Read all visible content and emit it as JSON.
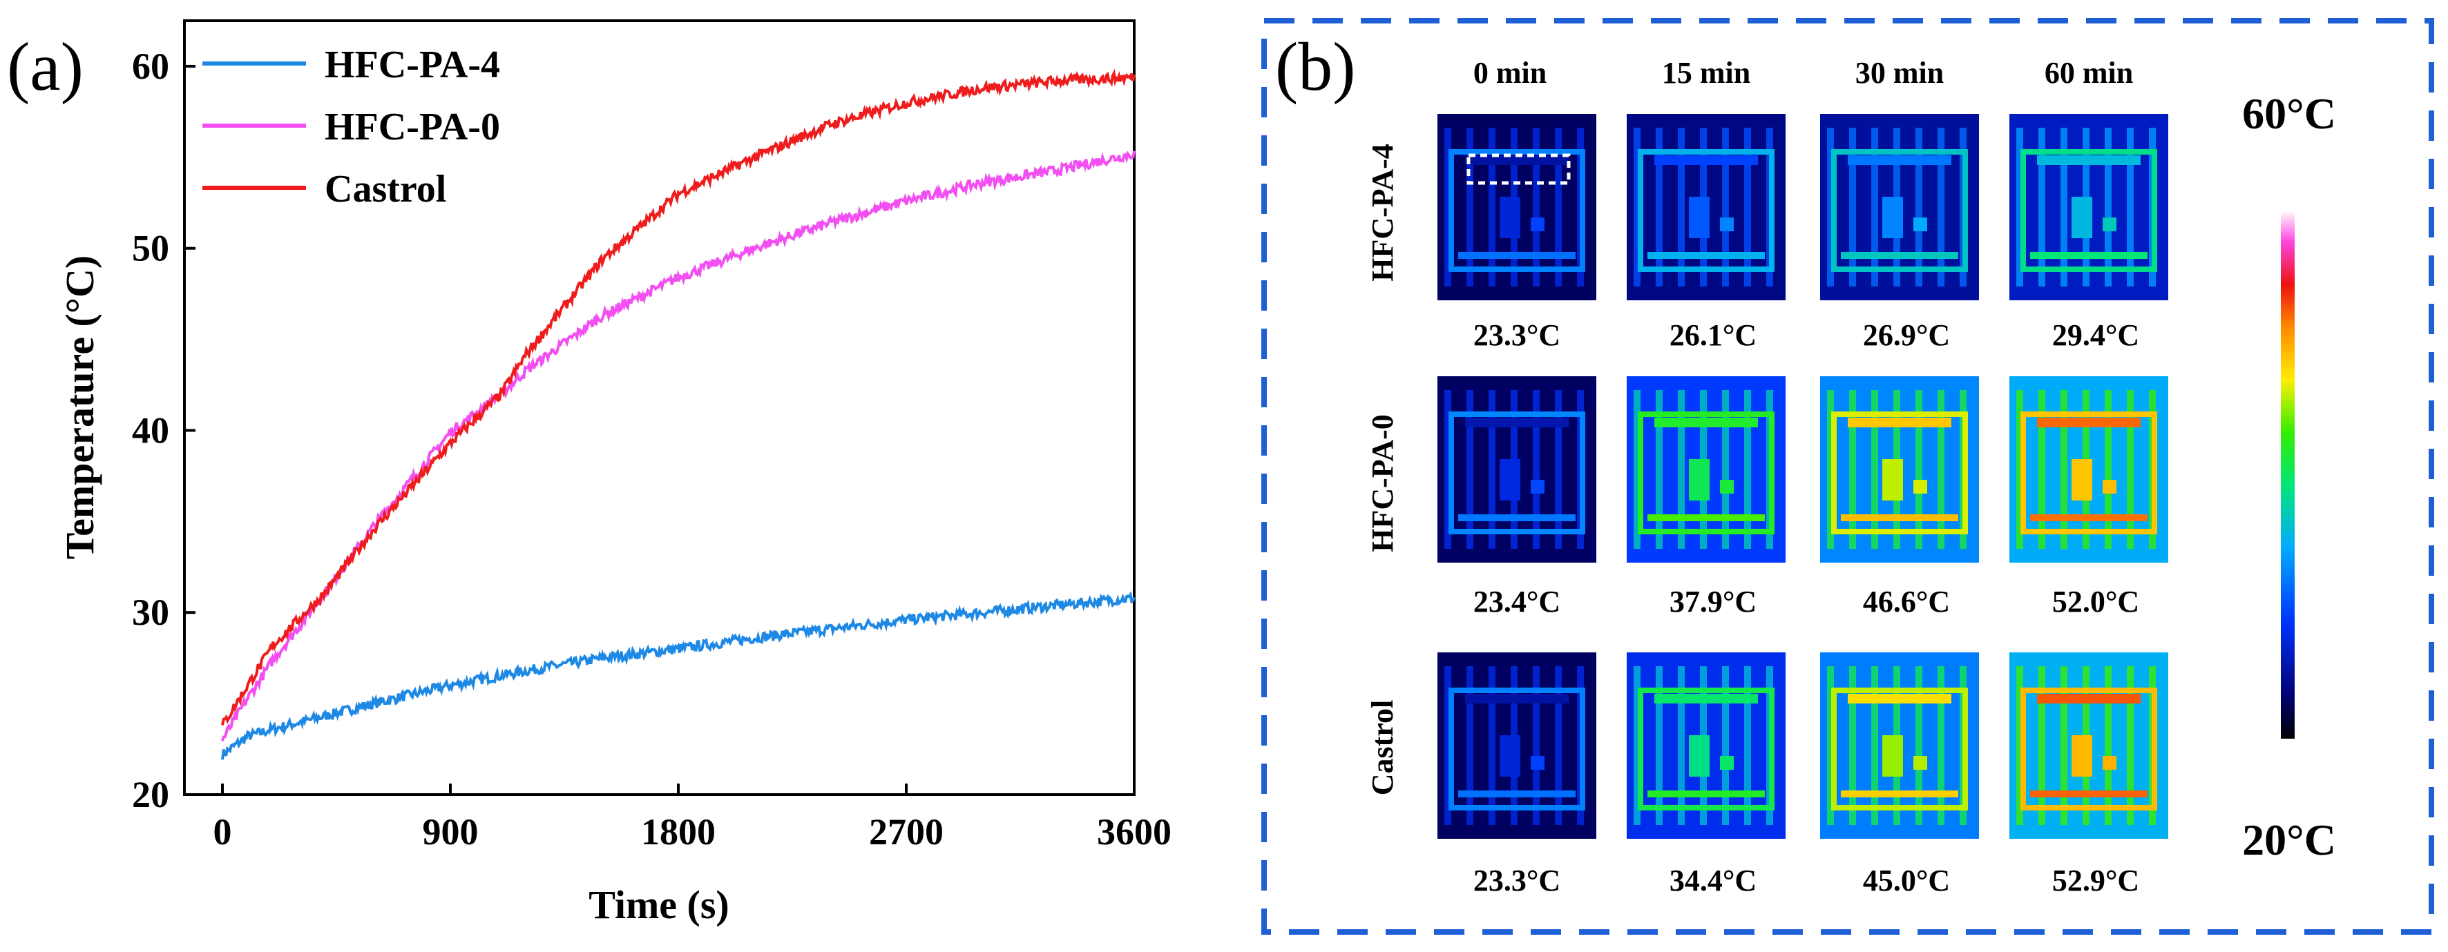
{
  "panel_a": {
    "label": "(a)"
  },
  "panel_b": {
    "label": "(b)",
    "time_headers": [
      "0 min",
      "15 min",
      "30 min",
      "60 min"
    ],
    "row_labels": [
      "HFC-PA-4",
      "HFC-PA-0",
      "Castrol"
    ],
    "temperatures": [
      [
        "23.3°C",
        "26.1°C",
        "26.9°C",
        "29.4°C"
      ],
      [
        "23.4°C",
        "37.9°C",
        "46.6°C",
        "52.0°C"
      ],
      [
        "23.3°C",
        "34.4°C",
        "45.0°C",
        "52.9°C"
      ]
    ],
    "heat_levels": [
      [
        0.02,
        0.12,
        0.18,
        0.27
      ],
      [
        0.03,
        0.45,
        0.68,
        0.8
      ],
      [
        0.02,
        0.38,
        0.65,
        0.82
      ]
    ],
    "colorbar": {
      "max_label": "60°C",
      "min_label": "20°C",
      "max_value": 60,
      "min_value": 20
    },
    "colors": {
      "border": "#1f5fd6"
    }
  },
  "chart_data": {
    "type": "line",
    "title": "",
    "xlabel": "Time (s)",
    "ylabel": "Temperature (°C)",
    "xlim": [
      -150,
      3600
    ],
    "ylim": [
      20,
      62.5
    ],
    "xticks": [
      0,
      900,
      1800,
      2700,
      3600
    ],
    "yticks": [
      20,
      30,
      40,
      50,
      60
    ],
    "legend_position": "top-left",
    "series": [
      {
        "name": "HFC-PA-4",
        "color": "#1e88e5",
        "x": [
          0,
          100,
          200,
          400,
          600,
          900,
          1200,
          1500,
          1800,
          2100,
          2400,
          2700,
          3000,
          3300,
          3600
        ],
        "y": [
          22.2,
          23.2,
          23.6,
          24.3,
          25.0,
          26.0,
          26.8,
          27.5,
          28.0,
          28.6,
          29.1,
          29.6,
          30.0,
          30.4,
          30.8
        ]
      },
      {
        "name": "HFC-PA-0",
        "color": "#f24ef2",
        "x": [
          0,
          100,
          200,
          400,
          600,
          900,
          1100,
          1200,
          1500,
          1800,
          2100,
          2400,
          2700,
          3000,
          3300,
          3600
        ],
        "y": [
          23.0,
          25.3,
          27.4,
          31.0,
          34.8,
          39.9,
          42.0,
          43.3,
          46.3,
          48.4,
          50.0,
          51.4,
          52.6,
          53.6,
          54.3,
          55.2
        ]
      },
      {
        "name": "Castrol",
        "color": "#ee1c1c",
        "x": [
          0,
          100,
          200,
          400,
          600,
          900,
          1100,
          1200,
          1500,
          1800,
          2100,
          2400,
          2700,
          3000,
          3300,
          3600
        ],
        "y": [
          23.8,
          26.0,
          28.2,
          31.0,
          34.6,
          39.3,
          42.0,
          44.2,
          49.4,
          53.0,
          55.0,
          56.8,
          58.0,
          58.8,
          59.2,
          59.4
        ]
      }
    ]
  }
}
